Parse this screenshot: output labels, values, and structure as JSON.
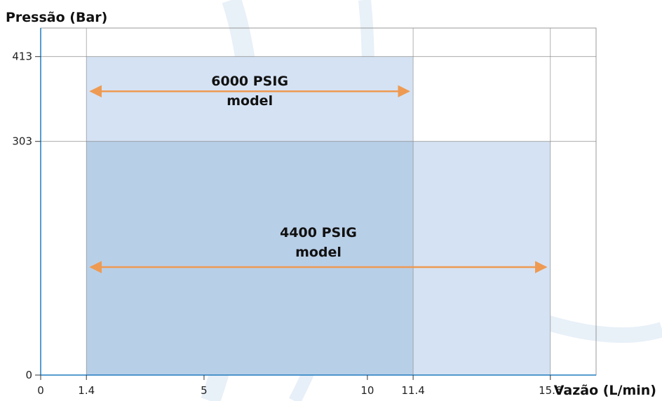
{
  "chart_data": {
    "type": "area",
    "ylabel": "Pressão (Bar)",
    "xlabel": "Vazão (L/min)",
    "xlim": [
      0,
      17
    ],
    "ylim": [
      0,
      450
    ],
    "x_ticks": [
      "0",
      "1.4",
      "5",
      "10",
      "11.4",
      "15.6"
    ],
    "x_tick_values": [
      0,
      1.4,
      5,
      10,
      11.4,
      15.6
    ],
    "y_ticks": [
      "0",
      "303",
      "413"
    ],
    "y_tick_values": [
      0,
      303,
      413
    ],
    "grid": true,
    "series": [
      {
        "name": "6000 PSIG model",
        "label_lines": [
          "6000 PSIG",
          "model"
        ],
        "x_range": [
          1.4,
          11.4
        ],
        "y_max": 413,
        "color": "#d5e2f3"
      },
      {
        "name": "4400 PSIG model",
        "label_lines": [
          "4400 PSIG",
          "model"
        ],
        "x_range": [
          1.4,
          15.6
        ],
        "y_max": 303,
        "color": "#d5e2f3"
      }
    ],
    "overlap_color": "#b8cfe8",
    "arrow_color": "#ee9a52",
    "axis_color": "#1f7bbf"
  }
}
